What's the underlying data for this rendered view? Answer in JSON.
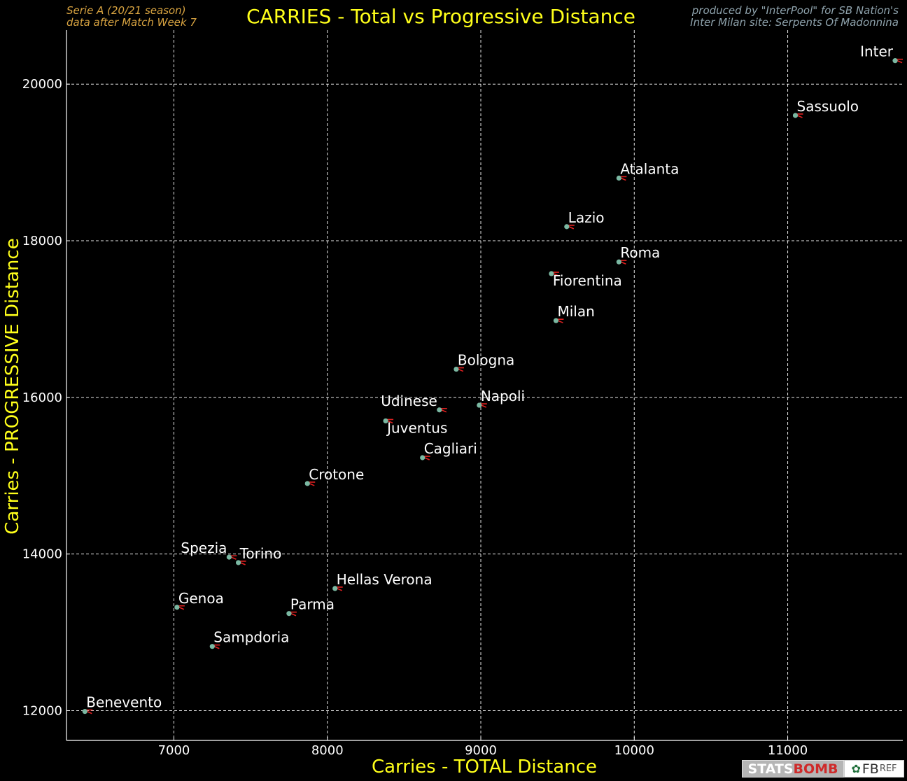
{
  "header": {
    "title": "CARRIES - Total vs Progressive Distance",
    "left_line1": "Serie A  (20/21 season)",
    "left_line2": "data after Match Week 7",
    "right_line1": "produced by \"InterPool\" for SB Nation's",
    "right_line2": "Inter Milan site: Serpents Of Madonnina"
  },
  "logos": {
    "statsbomb_a": "STATS",
    "statsbomb_b": "BOMB",
    "fbref_a": "FB",
    "fbref_b": "REF"
  },
  "colors": {
    "title": "#ffff1a",
    "point": "#7ab8a2",
    "tick_mark": "#e02020",
    "grid": "#ffffff"
  },
  "chart_data": {
    "type": "scatter",
    "title": "CARRIES - Total vs Progressive Distance",
    "xlabel": "Carries - TOTAL Distance",
    "ylabel": "Carries - PROGRESSIVE Distance",
    "xlim": [
      6300,
      11750
    ],
    "ylim": [
      11620,
      20690
    ],
    "xticks": [
      7000,
      8000,
      9000,
      10000,
      11000
    ],
    "yticks": [
      12000,
      14000,
      16000,
      18000,
      20000
    ],
    "grid": true,
    "points": [
      {
        "team": "Inter",
        "x": 11700,
        "y": 20300,
        "label_pos": "upper-left"
      },
      {
        "team": "Sassuolo",
        "x": 11050,
        "y": 19600,
        "label_pos": "upper-right"
      },
      {
        "team": "Atalanta",
        "x": 9900,
        "y": 18800,
        "label_pos": "upper-right"
      },
      {
        "team": "Lazio",
        "x": 9560,
        "y": 18180,
        "label_pos": "upper-right"
      },
      {
        "team": "Roma",
        "x": 9900,
        "y": 17730,
        "label_pos": "upper-right"
      },
      {
        "team": "Fiorentina",
        "x": 9460,
        "y": 17580,
        "label_pos": "lower-right"
      },
      {
        "team": "Milan",
        "x": 9490,
        "y": 16980,
        "label_pos": "upper-right"
      },
      {
        "team": "Bologna",
        "x": 8840,
        "y": 16360,
        "label_pos": "upper-right"
      },
      {
        "team": "Napoli",
        "x": 8990,
        "y": 15900,
        "label_pos": "upper-right"
      },
      {
        "team": "Udinese",
        "x": 8730,
        "y": 15840,
        "label_pos": "upper-left"
      },
      {
        "team": "Juventus",
        "x": 8380,
        "y": 15700,
        "label_pos": "lower-right"
      },
      {
        "team": "Cagliari",
        "x": 8620,
        "y": 15230,
        "label_pos": "upper-right"
      },
      {
        "team": "Crotone",
        "x": 7870,
        "y": 14900,
        "label_pos": "upper-right"
      },
      {
        "team": "Spezia",
        "x": 7360,
        "y": 13960,
        "label_pos": "upper-left"
      },
      {
        "team": "Torino",
        "x": 7420,
        "y": 13890,
        "label_pos": "upper-right"
      },
      {
        "team": "Hellas Verona",
        "x": 8050,
        "y": 13560,
        "label_pos": "upper-right"
      },
      {
        "team": "Genoa",
        "x": 7020,
        "y": 13320,
        "label_pos": "upper-right"
      },
      {
        "team": "Parma",
        "x": 7750,
        "y": 13240,
        "label_pos": "upper-right"
      },
      {
        "team": "Sampdoria",
        "x": 7250,
        "y": 12820,
        "label_pos": "upper-right"
      },
      {
        "team": "Benevento",
        "x": 6420,
        "y": 11990,
        "label_pos": "upper-right"
      }
    ]
  }
}
